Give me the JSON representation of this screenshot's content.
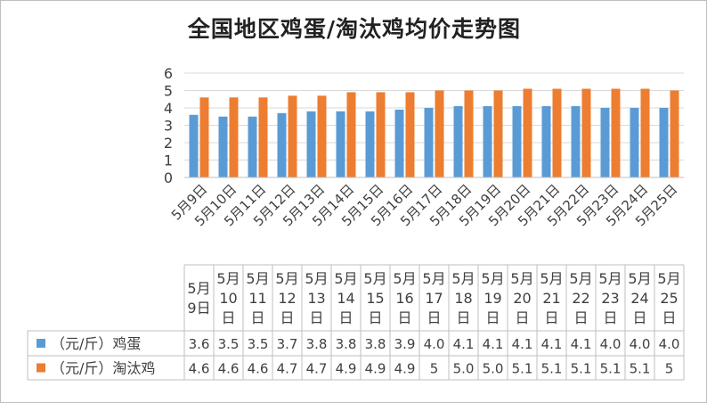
{
  "chart_data": {
    "type": "bar",
    "title": "全国地区鸡蛋/淘汰鸡均价走势图",
    "categories": [
      "5月9日",
      "5月10日",
      "5月11日",
      "5月12日",
      "5月13日",
      "5月14日",
      "5月15日",
      "5月16日",
      "5月17日",
      "5月18日",
      "5月19日",
      "5月20日",
      "5月21日",
      "5月22日",
      "5月23日",
      "5月24日",
      "5月25日"
    ],
    "series": [
      {
        "name": "（元/斤）鸡蛋",
        "color": "#5b9bd5",
        "values": [
          3.6,
          3.5,
          3.5,
          3.7,
          3.8,
          3.8,
          3.8,
          3.9,
          4.0,
          4.1,
          4.1,
          4.1,
          4.1,
          4.1,
          4.0,
          4.0,
          4.0
        ],
        "labels": [
          "3.6",
          "3.5",
          "3.5",
          "3.7",
          "3.8",
          "3.8",
          "3.8",
          "3.9",
          "4.0",
          "4.1",
          "4.1",
          "4.1",
          "4.1",
          "4.1",
          "4.0",
          "4.0",
          "4.0"
        ]
      },
      {
        "name": "（元/斤）淘汰鸡",
        "color": "#ed7d31",
        "values": [
          4.6,
          4.6,
          4.6,
          4.7,
          4.7,
          4.9,
          4.9,
          4.9,
          5,
          5.0,
          5.0,
          5.1,
          5.1,
          5.1,
          5.1,
          5.1,
          5
        ],
        "labels": [
          "4.6",
          "4.6",
          "4.6",
          "4.7",
          "4.7",
          "4.9",
          "4.9",
          "4.9",
          "5",
          "5.0",
          "5.0",
          "5.1",
          "5.1",
          "5.1",
          "5.1",
          "5.1",
          "5"
        ]
      }
    ],
    "ylim": [
      0,
      6
    ],
    "yticks": [
      "0",
      "1",
      "2",
      "3",
      "4",
      "5",
      "6"
    ],
    "grid": true,
    "legend": "data-table"
  }
}
